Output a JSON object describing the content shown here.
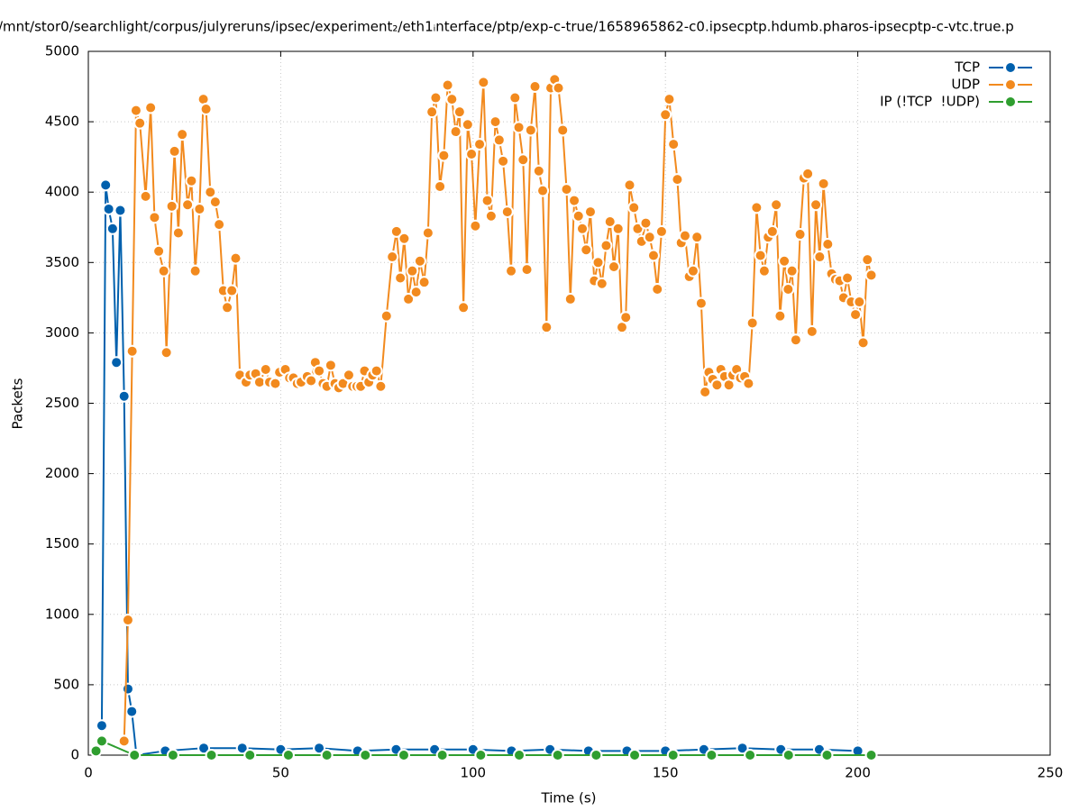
{
  "chart_data": {
    "type": "line",
    "title": "/mnt/stor0/searchlight/corpus/julyreruns/ipsec/experiment₂/eth1ᵢnterface/ptp/exp-c-true/1658965862-c0.ipsecptp.hdumb.pharos-ipsecptp-c-vtc.true.p",
    "xlabel": "Time (s)",
    "ylabel": "Packets",
    "xlim": [
      0,
      250
    ],
    "xticks": [
      0,
      50,
      100,
      150,
      200,
      250
    ],
    "ylim": [
      0,
      5000
    ],
    "yticks": [
      0,
      500,
      1000,
      1500,
      2000,
      2500,
      3000,
      3500,
      4000,
      4500,
      5000
    ],
    "grid": true,
    "legend": "top-right",
    "series": [
      {
        "name": "TCP",
        "color": "#0060ad",
        "x": [
          3.5,
          4.5,
          5.3,
          6.3,
          7.3,
          8.3,
          9.3,
          10.3,
          11.3,
          12.5,
          20,
          30,
          40,
          50,
          60,
          70,
          80,
          90,
          100,
          110,
          120,
          130,
          140,
          150,
          160,
          170,
          180,
          190,
          200
        ],
        "values": [
          210,
          4050,
          3880,
          3740,
          2790,
          3870,
          2550,
          470,
          310,
          0,
          30,
          50,
          50,
          40,
          50,
          30,
          40,
          40,
          40,
          30,
          40,
          30,
          30,
          30,
          40,
          50,
          40,
          40,
          30
        ]
      },
      {
        "name": "UDP",
        "color": "#f28a1e",
        "x": [
          9.3,
          10.3,
          11.4,
          12.4,
          13.4,
          14.9,
          16.2,
          17.2,
          18.3,
          19.6,
          20.3,
          21.7,
          22.4,
          23.4,
          24.4,
          25.8,
          26.8,
          27.8,
          28.9,
          29.9,
          30.6,
          31.7,
          33,
          34,
          35.1,
          36.1,
          37.3,
          38.3,
          39.4,
          41,
          42,
          43.5,
          44.5,
          46.1,
          47.1,
          48.6,
          49.7,
          51.2,
          52.3,
          53.3,
          54.3,
          55.3,
          56.9,
          57.9,
          59,
          60,
          61,
          62,
          63,
          64.1,
          65.1,
          66.2,
          67.7,
          68.7,
          69.8,
          70.8,
          71.8,
          72.9,
          73.9,
          74.9,
          76,
          77.5,
          79,
          80.1,
          81.1,
          82.1,
          83.2,
          84.2,
          85.2,
          86.2,
          87.3,
          88.3,
          89.3,
          90.3,
          91.4,
          92.4,
          93.4,
          94.5,
          95.5,
          96.5,
          97.5,
          98.6,
          99.6,
          100.6,
          101.7,
          102.7,
          103.7,
          104.7,
          105.8,
          106.8,
          107.8,
          108.9,
          109.9,
          110.9,
          111.9,
          113,
          114,
          115,
          116.1,
          117.1,
          118.1,
          119.1,
          120.2,
          121.2,
          122.2,
          123.3,
          124.3,
          125.3,
          126.3,
          127.4,
          128.4,
          129.4,
          130.5,
          131.5,
          132.5,
          133.5,
          134.6,
          135.6,
          136.6,
          137.7,
          138.7,
          139.7,
          140.7,
          141.8,
          142.8,
          143.8,
          144.9,
          145.9,
          146.9,
          147.9,
          149,
          150,
          151,
          152.1,
          153.1,
          154.1,
          155.1,
          156.2,
          157.2,
          158.2,
          159.3,
          160.3,
          161.3,
          162.3,
          163.4,
          164.4,
          165.4,
          166.5,
          167.5,
          168.5,
          169.5,
          170.6,
          171.6,
          172.6,
          173.7,
          174.7,
          175.7,
          176.7,
          177.8,
          178.8,
          179.8,
          180.9,
          181.9,
          182.9,
          183.9,
          185,
          186,
          187,
          188.1,
          189.1,
          190.1,
          191.1,
          192.2,
          193.2,
          194.2,
          195.3,
          196.3,
          197.3,
          198.3,
          199.4,
          200.4,
          201.4,
          202.5,
          203.5
        ],
        "values": [
          100,
          960,
          2870,
          4580,
          4490,
          3970,
          4600,
          3820,
          3580,
          3440,
          2860,
          3900,
          4290,
          3710,
          4410,
          3910,
          4080,
          3440,
          3880,
          4660,
          4590,
          4000,
          3930,
          3770,
          3300,
          3180,
          3300,
          3530,
          2700,
          2650,
          2700,
          2710,
          2650,
          2740,
          2650,
          2640,
          2720,
          2740,
          2680,
          2680,
          2640,
          2650,
          2690,
          2660,
          2790,
          2730,
          2640,
          2620,
          2770,
          2640,
          2610,
          2640,
          2700,
          2620,
          2620,
          2620,
          2730,
          2650,
          2700,
          2730,
          2620,
          3120,
          3540,
          3720,
          3390,
          3670,
          3240,
          3440,
          3290,
          3510,
          3360,
          3710,
          4570,
          4670,
          4040,
          4260,
          4760,
          4660,
          4430,
          4570,
          3180,
          4480,
          4270,
          3760,
          4340,
          4780,
          3940,
          3830,
          4500,
          4370,
          4220,
          3860,
          3440,
          4670,
          4460,
          4230,
          3450,
          4440,
          4750,
          4150,
          4010,
          3040,
          4740,
          4800,
          4740,
          4440,
          4020,
          3240,
          3940,
          3830,
          3740,
          3590,
          3860,
          3370,
          3500,
          3350,
          3620,
          3790,
          3470,
          3740,
          3040,
          3110,
          4050,
          3890,
          3740,
          3650,
          3780,
          3680,
          3550,
          3310,
          3720,
          4550,
          4660,
          4340,
          4090,
          3640,
          3690,
          3400,
          3440,
          3680,
          3210,
          2580,
          2720,
          2670,
          2630,
          2740,
          2690,
          2630,
          2700,
          2740,
          2680,
          2690,
          2640,
          3070,
          3890,
          3550,
          3440,
          3680,
          3720,
          3910,
          3120,
          3510,
          3310,
          3440,
          2950,
          3700,
          4100,
          4130,
          3010,
          3910,
          3540,
          4060,
          3630,
          3420,
          3380,
          3370,
          3250,
          3390,
          3220,
          3130,
          3220,
          2930,
          3520,
          3410
        ]
      },
      {
        "name": "IP (!TCP  !UDP)",
        "color": "#2f9e2f",
        "x": [
          2,
          3.5,
          12,
          22,
          32,
          42,
          52,
          62,
          72,
          82,
          92,
          102,
          112,
          122,
          132,
          142,
          152,
          162,
          172,
          182,
          192,
          203.5
        ],
        "values": [
          30,
          100,
          0,
          0,
          0,
          0,
          0,
          0,
          0,
          0,
          0,
          0,
          0,
          0,
          0,
          0,
          0,
          0,
          0,
          0,
          0,
          0
        ]
      }
    ]
  }
}
